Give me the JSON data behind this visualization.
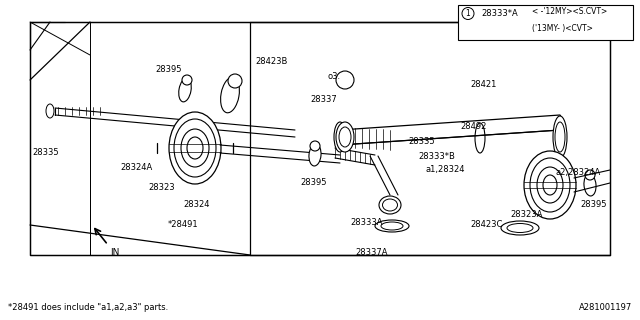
{
  "bg_color": "#ffffff",
  "line_color": "#000000",
  "fig_width": 6.4,
  "fig_height": 3.2,
  "dpi": 100,
  "footnote": "*28491 does include \"a1,a2,a3\" parts.",
  "part_id": "A281001197",
  "legend": {
    "circle_num": "1",
    "part_num": "28333*A",
    "line1": "< -'12MY><S.CVT>",
    "line2": "('13MY- )<CVT>"
  }
}
